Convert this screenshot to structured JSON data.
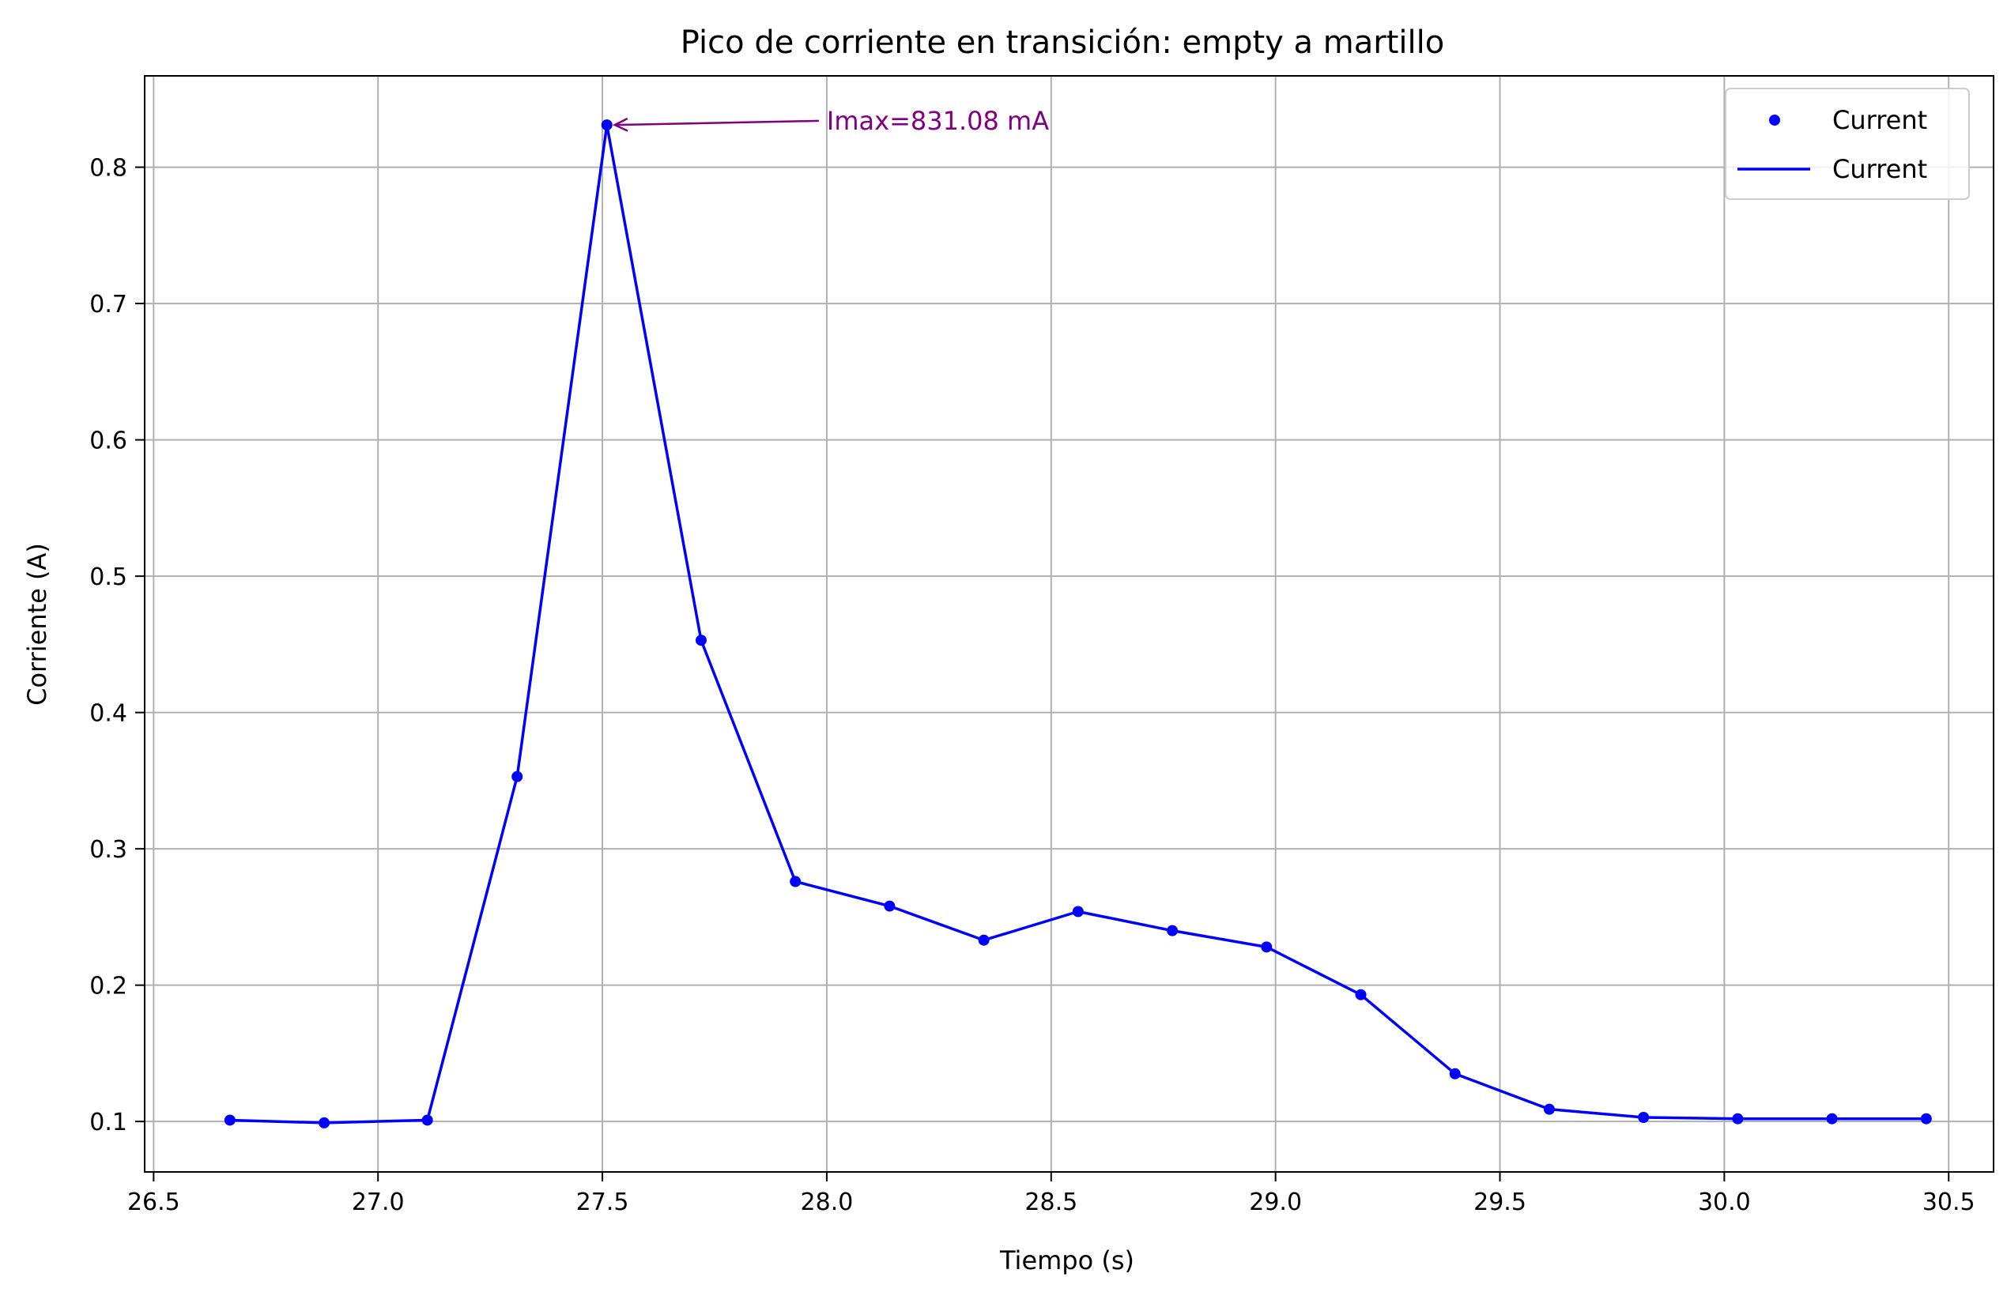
{
  "chart_data": {
    "type": "line",
    "title": "Pico de corriente en transición: empty a martillo",
    "xlabel": "Tiempo (s)",
    "ylabel": "Corriente (A)",
    "xlim": [
      26.48,
      30.6
    ],
    "ylim": [
      0.063,
      0.867
    ],
    "xticks": [
      26.5,
      27.0,
      27.5,
      28.0,
      28.5,
      29.0,
      29.5,
      30.0,
      30.5
    ],
    "xtick_labels": [
      "26.5",
      "27.0",
      "27.5",
      "28.0",
      "28.5",
      "29.0",
      "29.5",
      "30.0",
      "30.5"
    ],
    "yticks": [
      0.1,
      0.2,
      0.3,
      0.4,
      0.5,
      0.6,
      0.7,
      0.8
    ],
    "ytick_labels": [
      "0.1",
      "0.2",
      "0.3",
      "0.4",
      "0.5",
      "0.6",
      "0.7",
      "0.8"
    ],
    "grid": true,
    "legend_position": "top-right",
    "series_color": "#0000ff",
    "annotation_color": "#800080",
    "series": [
      {
        "name": "Current",
        "style": "scatter",
        "x": [
          26.67,
          26.88,
          27.11,
          27.31,
          27.51,
          27.72,
          27.93,
          28.14,
          28.35,
          28.56,
          28.77,
          28.98,
          29.19,
          29.4,
          29.61,
          29.82,
          30.03,
          30.24,
          30.45
        ],
        "y": [
          0.101,
          0.099,
          0.101,
          0.353,
          0.831,
          0.453,
          0.276,
          0.258,
          0.233,
          0.254,
          0.24,
          0.228,
          0.193,
          0.135,
          0.109,
          0.103,
          0.102,
          0.102,
          0.102
        ]
      },
      {
        "name": "Current",
        "style": "line",
        "x": [
          26.67,
          26.88,
          27.11,
          27.31,
          27.51,
          27.72,
          27.93,
          28.14,
          28.35,
          28.56,
          28.77,
          28.98,
          29.19,
          29.4,
          29.61,
          29.82,
          30.03,
          30.24,
          30.45
        ],
        "y": [
          0.101,
          0.099,
          0.101,
          0.353,
          0.831,
          0.453,
          0.276,
          0.258,
          0.233,
          0.254,
          0.24,
          0.228,
          0.193,
          0.135,
          0.109,
          0.103,
          0.102,
          0.102,
          0.102
        ]
      }
    ],
    "annotations": [
      {
        "text": "Imax=831.08 mA",
        "xy": [
          27.51,
          0.831
        ],
        "xytext": [
          28.0,
          0.834
        ]
      }
    ]
  }
}
